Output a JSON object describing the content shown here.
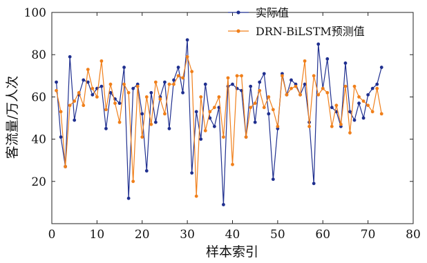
{
  "chart_data": {
    "type": "line",
    "xlabel": "样本索引",
    "ylabel": "客流量/万人次",
    "xlim": [
      0,
      80
    ],
    "ylim": [
      0,
      100
    ],
    "x_ticks": [
      0,
      10,
      20,
      30,
      40,
      50,
      60,
      70,
      80
    ],
    "y_ticks": [
      20,
      40,
      60,
      80,
      100
    ],
    "grid": false,
    "legend_position": "top-right",
    "x": [
      1,
      2,
      3,
      4,
      5,
      6,
      7,
      8,
      9,
      10,
      11,
      12,
      13,
      14,
      15,
      16,
      17,
      18,
      19,
      20,
      21,
      22,
      23,
      24,
      25,
      26,
      27,
      28,
      29,
      30,
      31,
      32,
      33,
      34,
      35,
      36,
      37,
      38,
      39,
      40,
      41,
      42,
      43,
      44,
      45,
      46,
      47,
      48,
      49,
      50,
      51,
      52,
      53,
      54,
      55,
      56,
      57,
      58,
      59,
      60,
      61,
      62,
      63,
      64,
      65,
      66,
      67,
      68,
      69,
      70,
      71,
      72,
      73
    ],
    "series": [
      {
        "name": "实际值",
        "color": "#1f2f8f",
        "marker": "circle",
        "values": [
          67,
          41,
          27,
          79,
          49,
          61,
          68,
          67,
          61,
          64,
          65,
          45,
          62,
          59,
          57,
          74,
          12,
          64,
          66,
          52,
          25,
          62,
          48,
          60,
          67,
          45,
          68,
          74,
          62,
          87,
          24,
          53,
          40,
          66,
          50,
          46,
          55,
          9,
          65,
          66,
          64,
          63,
          41,
          65,
          48,
          67,
          71,
          52,
          21,
          45,
          71,
          61,
          68,
          66,
          61,
          66,
          48,
          19,
          85,
          64,
          78,
          55,
          53,
          46,
          76,
          53,
          49,
          57,
          50,
          61,
          64,
          66,
          74
        ],
        "values_note": ""
      },
      {
        "name": "DRN-BiLSTM预测值",
        "color": "#f07f1a",
        "marker": "circle",
        "values": [
          63,
          53,
          27,
          56,
          58,
          62,
          56,
          73,
          64,
          60,
          77,
          54,
          66,
          57,
          48,
          66,
          62,
          20,
          65,
          41,
          60,
          47,
          67,
          59,
          52,
          66,
          66,
          70,
          69,
          79,
          72,
          13,
          60,
          44,
          53,
          55,
          60,
          41,
          69,
          28,
          70,
          70,
          41,
          55,
          57,
          63,
          55,
          60,
          54,
          46,
          70,
          61,
          64,
          65,
          61,
          77,
          46,
          70,
          61,
          64,
          62,
          46,
          56,
          47,
          65,
          43,
          65,
          60,
          58,
          56,
          53,
          64,
          52
        ]
      }
    ]
  }
}
